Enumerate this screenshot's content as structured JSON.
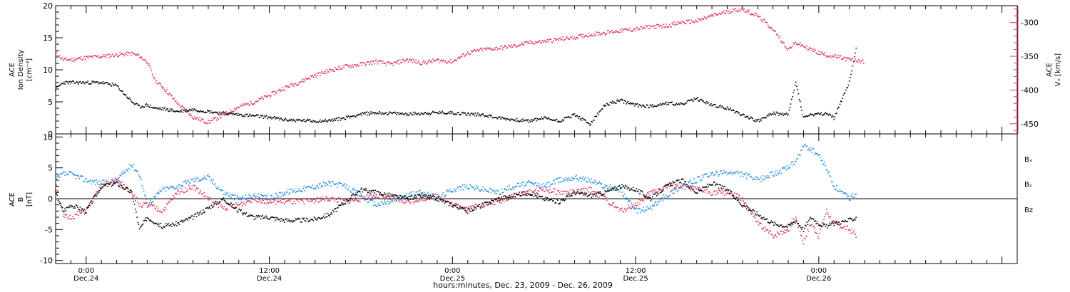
{
  "colors": {
    "black": "#000000",
    "blue": "#1f8fe0",
    "pink": "#e0325f"
  },
  "chart_data": [
    {
      "type": "scatter",
      "panel": "top",
      "ylabel_left_lines": [
        "ACE",
        "Ion Density",
        "[cm⁻³]"
      ],
      "ylabel_right_lines": [
        "ACE",
        "Vₓ [km/s]"
      ],
      "ylim_left": [
        0,
        20
      ],
      "ylim_right": [
        -465,
        -275
      ],
      "yticks_left": [
        "0",
        "5",
        "10",
        "15",
        "20"
      ],
      "yticks_right": [
        "-300",
        "-350",
        "-400",
        "-450"
      ],
      "x_unit": "hours since 2009-12-23 00:00",
      "series": [
        {
          "color": "pink",
          "axis": "right",
          "x": [
            22.0,
            22.5,
            23,
            24,
            25,
            26,
            27,
            27.5,
            28,
            28.5,
            29,
            30,
            31,
            32,
            33,
            34,
            35,
            36,
            37,
            38,
            39,
            40,
            41,
            42,
            43,
            44,
            45,
            46,
            47,
            48,
            49,
            50,
            51,
            52,
            53,
            54,
            55,
            56,
            57,
            58,
            59,
            60,
            61,
            62,
            63,
            64,
            65,
            66,
            67,
            68,
            69,
            70,
            70.5,
            71,
            71.5,
            72,
            72.5,
            73,
            74,
            75
          ],
          "y": [
            -345,
            -355,
            -355,
            -352,
            -350,
            -348,
            -346,
            -350,
            -358,
            -385,
            -395,
            -420,
            -440,
            -448,
            -437,
            -425,
            -418,
            -408,
            -397,
            -388,
            -378,
            -371,
            -365,
            -362,
            -358,
            -362,
            -355,
            -360,
            -356,
            -358,
            -345,
            -340,
            -338,
            -335,
            -330,
            -328,
            -325,
            -322,
            -318,
            -315,
            -312,
            -310,
            -306,
            -305,
            -300,
            -298,
            -290,
            -284,
            -280,
            -290,
            -310,
            -340,
            -330,
            -335,
            -340,
            -345,
            -348,
            -350,
            -355,
            -358
          ]
        },
        {
          "color": "black",
          "axis": "left",
          "x": [
            22.0,
            22.5,
            23,
            24,
            25,
            26,
            27,
            27.5,
            28,
            28.5,
            29,
            30,
            31,
            32,
            33,
            34,
            35,
            36,
            37,
            38,
            39,
            40,
            41,
            42,
            43,
            44,
            45,
            46,
            47,
            48,
            49,
            50,
            51,
            52,
            53,
            54,
            55,
            56,
            57,
            58,
            59,
            60,
            61,
            62,
            63,
            64,
            65,
            66,
            67,
            68,
            69,
            70,
            70.5,
            71,
            71.5,
            72,
            72.5,
            73,
            74,
            74.5
          ],
          "y": [
            7,
            8,
            8,
            8,
            8,
            7.5,
            5,
            4.2,
            4.5,
            4,
            3.9,
            3.5,
            3.8,
            3.5,
            3.2,
            3,
            2.8,
            2.6,
            2.2,
            2.1,
            2.0,
            2.1,
            2.5,
            3.1,
            3.3,
            3.2,
            3.1,
            3.2,
            3.3,
            3.3,
            3.1,
            3.0,
            2.5,
            2.2,
            2.0,
            2.5,
            2.0,
            3,
            1.5,
            4.5,
            5.2,
            4.5,
            4.3,
            4.8,
            4.6,
            5.5,
            4.5,
            4.0,
            3.0,
            2.0,
            3.2,
            3.0,
            8.0,
            2.5,
            3.0,
            3.0,
            3.2,
            2.5,
            8,
            14
          ]
        }
      ]
    },
    {
      "type": "scatter",
      "panel": "bottom",
      "ylabel_lines": [
        "ACE",
        "B",
        "[nT]"
      ],
      "ylim": [
        -10.5,
        10.5
      ],
      "yticks": [
        "-10",
        "-5",
        "0",
        "5",
        "10"
      ],
      "x_unit": "hours since 2009-12-23 00:00",
      "legend": [
        {
          "label": "Bₓ",
          "color": "black"
        },
        {
          "label": "Bᵧ",
          "color": "blue"
        },
        {
          "label": "Bz",
          "color": "pink"
        }
      ],
      "series": [
        {
          "name": "Bₓ",
          "color": "black",
          "x": [
            22.0,
            22.5,
            23,
            24,
            25,
            26,
            27,
            27.5,
            28,
            29,
            30,
            31,
            32,
            33,
            34,
            35,
            36,
            37,
            38,
            39,
            40,
            41,
            42,
            43,
            44,
            45,
            46,
            47,
            48,
            49,
            50,
            51,
            52,
            53,
            54,
            55,
            56,
            57,
            58,
            59,
            60,
            61,
            62,
            63,
            64,
            65,
            66,
            67,
            68,
            69,
            70,
            70.5,
            71,
            71.5,
            72,
            72.5,
            73,
            74,
            74.5
          ],
          "y": [
            1,
            -2,
            -1,
            -2,
            2,
            2.5,
            1,
            -5,
            -3,
            -4.5,
            -4,
            -3,
            -1.5,
            0,
            -2,
            -3,
            -3,
            -3.5,
            -3.5,
            -3.3,
            -2.5,
            -0.5,
            1.5,
            1,
            0.5,
            0,
            0.5,
            0,
            -1,
            -2,
            -1,
            0,
            0.5,
            1,
            0,
            -0.5,
            1,
            0.5,
            1,
            2,
            1.5,
            0,
            2,
            3,
            1,
            2.5,
            1.5,
            -1,
            -2.5,
            -4,
            -4.5,
            -3.5,
            -5,
            -3,
            -4,
            -4.5,
            -4,
            -3.5,
            -3
          ]
        },
        {
          "name": "Bᵧ",
          "color": "blue",
          "x": [
            22.0,
            22.5,
            23,
            24,
            25,
            26,
            27,
            27.5,
            28,
            29,
            30,
            31,
            32,
            33,
            34,
            35,
            36,
            37,
            38,
            39,
            40,
            41,
            42,
            43,
            44,
            45,
            46,
            47,
            48,
            49,
            50,
            51,
            52,
            53,
            54,
            55,
            56,
            57,
            58,
            59,
            60,
            61,
            62,
            63,
            64,
            65,
            66,
            67,
            68,
            69,
            70,
            70.5,
            71,
            71.5,
            72,
            72.5,
            73,
            74,
            74.5
          ],
          "y": [
            3,
            4,
            4,
            3,
            2.5,
            3,
            5.5,
            4,
            -1,
            1.5,
            2,
            3,
            3.5,
            1,
            0,
            0.5,
            0,
            1,
            1.5,
            2,
            2.5,
            2,
            0.5,
            -1,
            -0.5,
            0.5,
            1,
            0,
            1.5,
            2,
            1.5,
            1,
            2,
            2.5,
            2,
            3,
            3.5,
            3,
            2,
            1.5,
            -2,
            -1.5,
            0.5,
            2,
            3,
            4,
            4.2,
            4,
            3,
            4,
            5,
            6,
            8.5,
            8,
            7,
            5,
            2,
            0,
            1
          ]
        },
        {
          "name": "Bz",
          "color": "pink",
          "x": [
            22.0,
            22.5,
            23,
            24,
            25,
            26,
            27,
            27.5,
            28,
            29,
            30,
            31,
            32,
            33,
            34,
            35,
            36,
            37,
            38,
            39,
            40,
            41,
            42,
            43,
            44,
            45,
            46,
            47,
            48,
            49,
            50,
            51,
            52,
            53,
            54,
            55,
            56,
            57,
            58,
            59,
            60,
            61,
            62,
            63,
            64,
            65,
            66,
            67,
            68,
            69,
            70,
            70.5,
            71,
            71.5,
            72,
            72.5,
            73,
            74,
            74.5
          ],
          "y": [
            3,
            -3,
            -3,
            -2,
            2,
            3,
            1,
            -1,
            -1,
            -2,
            1,
            2,
            0,
            -1.5,
            -1,
            0,
            -0.5,
            -0.5,
            -0.5,
            -0.2,
            0,
            -0.5,
            0,
            0.5,
            0,
            -0.5,
            0,
            0.5,
            -1,
            -1.5,
            -1,
            -0.5,
            0.5,
            1,
            1.5,
            1,
            1,
            1.5,
            0,
            -2,
            -1,
            1,
            2,
            2,
            1.5,
            1,
            1,
            0,
            -4,
            -6,
            -5,
            -3,
            -7,
            -4,
            -6,
            -2,
            -4,
            -5,
            -6
          ]
        }
      ]
    }
  ],
  "x_axis": {
    "ticks": [
      {
        "hours": 24,
        "time": "0:00",
        "date": "Dec.24"
      },
      {
        "hours": 36,
        "time": "12:00",
        "date": "Dec.24"
      },
      {
        "hours": 48,
        "time": "0:00",
        "date": "Dec.25"
      },
      {
        "hours": 60,
        "time": "12:00",
        "date": "Dec.25"
      },
      {
        "hours": 72,
        "time": "0:00",
        "date": "Dec.26"
      }
    ],
    "label": "hours:minutes, Dec. 23, 2009 - Dec. 26, 2009"
  }
}
